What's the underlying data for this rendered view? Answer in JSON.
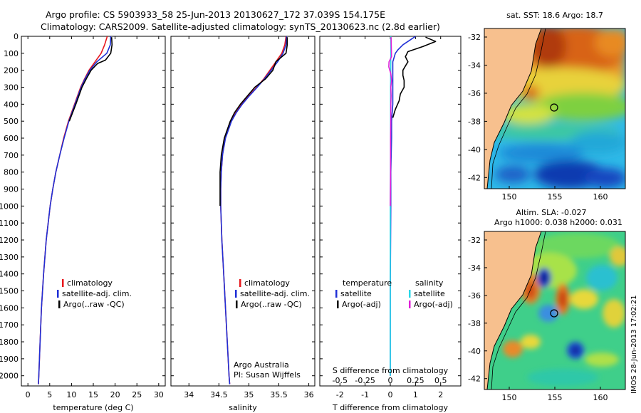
{
  "title": {
    "line1": "Argo profile: CS 5903933_58 25-Jun-2013 20130627_172 37.039S 154.175E",
    "line2": "Climatology: CARS2009. Satellite-adjusted climatology: synTS_20130623.nc (2.8d earlier)"
  },
  "colors": {
    "climatology": "#e8171c",
    "satellite": "#1f2fd6",
    "argo": "#000000",
    "sat_sal": "#29d8e8",
    "argo_sal": "#e01fd8"
  },
  "depth_axis": {
    "ticks": [
      0,
      100,
      200,
      300,
      400,
      500,
      600,
      700,
      800,
      900,
      1000,
      1100,
      1200,
      1300,
      1400,
      1500,
      1600,
      1700,
      1800,
      1900,
      2000
    ],
    "range": [
      0,
      2060
    ]
  },
  "chart_data": [
    {
      "id": "temperature",
      "type": "line",
      "xlabel": "temperature (deg C)",
      "ylabel": "depth",
      "xlim": [
        -1.5,
        31.5
      ],
      "xticks": [
        0,
        5,
        10,
        15,
        20,
        25,
        30
      ],
      "legend": [
        "climatology",
        "satellite-adj. clim.",
        "Argo(..raw -QC)"
      ],
      "series": [
        {
          "name": "climatology",
          "depth": [
            0,
            50,
            100,
            150,
            200,
            250,
            300,
            400,
            500,
            600,
            700,
            800,
            900,
            1000,
            1200,
            1400,
            1600,
            1800,
            2000,
            2050
          ],
          "values": [
            18.2,
            17.6,
            16.8,
            15.4,
            14.0,
            13.0,
            12.1,
            10.7,
            9.3,
            8.2,
            7.3,
            6.4,
            5.7,
            5.1,
            4.2,
            3.6,
            3.1,
            2.8,
            2.5,
            2.4
          ]
        },
        {
          "name": "satellite-adj. clim.",
          "depth": [
            0,
            50,
            100,
            150,
            200,
            250,
            300,
            400,
            500,
            600,
            700,
            800,
            900,
            1000,
            1200,
            1400,
            1600,
            1800,
            2000,
            2050
          ],
          "values": [
            19.0,
            18.9,
            18.1,
            15.8,
            14.2,
            13.1,
            12.2,
            10.8,
            9.4,
            8.3,
            7.3,
            6.4,
            5.7,
            5.1,
            4.2,
            3.6,
            3.1,
            2.8,
            2.5,
            2.4
          ]
        },
        {
          "name": "Argo(..raw -QC)",
          "depth": [
            5,
            50,
            100,
            140,
            160,
            200,
            250,
            300,
            400,
            500
          ],
          "values": [
            19.2,
            19.3,
            19.0,
            17.8,
            16.0,
            14.5,
            13.4,
            12.4,
            11.0,
            9.5
          ]
        }
      ]
    },
    {
      "id": "salinity",
      "type": "line",
      "xlabel": "salinity",
      "ylabel": "depth",
      "xlim": [
        33.7,
        36.1
      ],
      "xticks": [
        34,
        34.5,
        35,
        35.5,
        36
      ],
      "legend": [
        "climatology",
        "satellite-adj. clim.",
        "Argo(..raw -QC)"
      ],
      "annotation": [
        "Argo Australia",
        "PI: Susan Wijffels"
      ],
      "series": [
        {
          "name": "climatology",
          "depth": [
            0,
            50,
            100,
            150,
            200,
            250,
            300,
            350,
            400,
            450,
            500,
            600,
            700,
            800,
            900,
            1000,
            1200,
            1400,
            1600,
            1800,
            2000,
            2050
          ],
          "values": [
            35.62,
            35.6,
            35.55,
            35.45,
            35.35,
            35.25,
            35.13,
            35.0,
            34.88,
            34.78,
            34.7,
            34.6,
            34.56,
            34.54,
            34.53,
            34.53,
            34.55,
            34.58,
            34.61,
            34.64,
            34.67,
            34.68
          ]
        },
        {
          "name": "satellite-adj. clim.",
          "depth": [
            0,
            50,
            100,
            150,
            200,
            250,
            300,
            350,
            400,
            450,
            500,
            600,
            700,
            800,
            900,
            1000,
            1200,
            1400,
            1600,
            1800,
            2000,
            2050
          ],
          "values": [
            35.63,
            35.62,
            35.57,
            35.48,
            35.37,
            35.26,
            35.14,
            35.01,
            34.89,
            34.79,
            34.71,
            34.61,
            34.56,
            34.54,
            34.53,
            34.53,
            34.55,
            34.58,
            34.61,
            34.64,
            34.67,
            34.68
          ]
        },
        {
          "name": "Argo(..raw -QC)",
          "depth": [
            5,
            50,
            100,
            150,
            200,
            250,
            300,
            350,
            400,
            450,
            500,
            600,
            700,
            800,
            900,
            1000
          ],
          "values": [
            35.64,
            35.64,
            35.62,
            35.45,
            35.4,
            35.28,
            35.1,
            34.98,
            34.86,
            34.76,
            34.69,
            34.59,
            34.54,
            34.52,
            34.52,
            34.52
          ]
        }
      ]
    },
    {
      "id": "difference",
      "type": "line",
      "xlabel": "T difference from climatology",
      "xlabel_top": "S difference from climatology",
      "xlim": [
        -2.8,
        2.8
      ],
      "xticks": [
        -2,
        -1,
        0,
        1,
        2
      ],
      "sticks": [
        -0.5,
        -0.25,
        0,
        0.25,
        0.5
      ],
      "sticklabels": [
        "-0.5",
        "-0.25",
        "0",
        "0.25",
        "0.5"
      ],
      "legend_t": {
        "header": "temperature",
        "items": [
          "satellite",
          "Argo(-adj)"
        ]
      },
      "legend_s": {
        "header": "salinity",
        "items": [
          "satellite",
          "Argo(-adj)"
        ]
      },
      "series": [
        {
          "name": "temperature satellite",
          "depth": [
            0,
            20,
            50,
            80,
            100,
            150,
            200,
            250,
            300,
            350,
            400,
            500,
            600,
            800,
            1000,
            1500,
            2000
          ],
          "values": [
            1.0,
            0.8,
            0.5,
            0.3,
            0.2,
            0.1,
            0.1,
            0.1,
            0.1,
            0.1,
            0.1,
            0.05,
            0.05,
            0.02,
            0.02,
            0.0,
            0.0
          ]
        },
        {
          "name": "temperature Argo(-adj)",
          "depth": [
            5,
            30,
            60,
            90,
            120,
            150,
            175,
            200,
            230,
            260,
            300,
            340,
            380,
            430,
            480
          ],
          "values": [
            1.4,
            1.8,
            1.3,
            0.7,
            0.6,
            0.7,
            0.6,
            0.5,
            0.5,
            0.55,
            0.55,
            0.4,
            0.35,
            0.2,
            0.1
          ]
        },
        {
          "name": "salinity satellite",
          "depth": [
            0,
            100,
            300,
            600,
            1000,
            1500,
            2000
          ],
          "values": [
            0.02,
            0.02,
            0.01,
            0.01,
            0.0,
            0.0,
            0.0
          ]
        },
        {
          "name": "salinity Argo(-adj)",
          "depth": [
            5,
            60,
            120,
            150,
            180,
            220,
            260,
            300,
            350,
            400,
            500,
            600,
            800,
            1000
          ],
          "values": [
            0.03,
            0.04,
            0.05,
            -0.05,
            -0.06,
            0.02,
            0.05,
            0.02,
            0.03,
            0.02,
            0.02,
            0.01,
            0.01,
            0.0
          ]
        }
      ]
    }
  ],
  "maps": {
    "sst": {
      "title": "sat. SST: 18.6 Argo: 18.7",
      "lon_ticks": [
        "150",
        "155",
        "160"
      ],
      "lat_ticks": [
        "-32",
        "-34",
        "-36",
        "-38",
        "-40",
        "-42"
      ]
    },
    "sla": {
      "title1": "Altim. SLA: -0.027",
      "title2": "Argo h1000: 0.038 h2000: 0.031",
      "lon_ticks": [
        "150",
        "155",
        "160"
      ],
      "lat_ticks": [
        "-32",
        "-34",
        "-36",
        "-38",
        "-40",
        "-42"
      ]
    }
  },
  "stamp": "IMOS 28-Jun-2013 17:02:21"
}
